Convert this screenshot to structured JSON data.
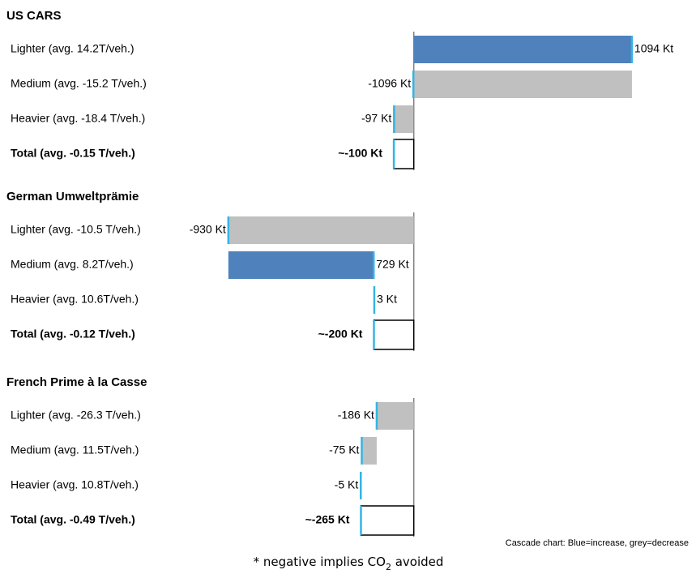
{
  "chart_data": [
    {
      "type": "waterfall",
      "title": "US CARS",
      "categories": [
        "Lighter (avg. 14.2T/veh.)",
        "Medium (avg. -15.2 T/veh.)",
        "Heavier (avg. -18.4 T/veh.)"
      ],
      "values": [
        1094,
        -1096,
        -97
      ],
      "value_labels": [
        "1094 Kt",
        "-1096 Kt",
        "-97 Kt"
      ],
      "total": {
        "label": "Total (avg. -0.15 T/veh.)",
        "value": -100,
        "value_label": "~-100 Kt"
      },
      "xlim": [
        -1100,
        1200
      ],
      "colors": {
        "increase": "#4f81bd",
        "decrease": "#c0c0c0"
      }
    },
    {
      "type": "waterfall",
      "title": "German Umweltprämie",
      "categories": [
        "Lighter (avg. -10.5 T/veh.)",
        "Medium (avg. 8.2T/veh.)",
        "Heavier (avg. 10.6T/veh.)"
      ],
      "values": [
        -930,
        729,
        3
      ],
      "value_labels": [
        "-930 Kt",
        "729 Kt",
        "3 Kt"
      ],
      "total": {
        "label": "Total (avg. -0.12 T/veh.)",
        "value": -200,
        "value_label": "~-200 Kt"
      },
      "xlim": [
        -1100,
        1200
      ],
      "colors": {
        "increase": "#4f81bd",
        "decrease": "#c0c0c0"
      }
    },
    {
      "type": "waterfall",
      "title": "French Prime à la Casse",
      "categories": [
        "Lighter (avg. -26.3 T/veh.)",
        "Medium (avg. 11.5T/veh.)",
        "Heavier (avg. 10.8T/veh.)"
      ],
      "values": [
        -186,
        -75,
        -5
      ],
      "value_labels": [
        "-186 Kt",
        "-75 Kt",
        "-5 Kt"
      ],
      "total": {
        "label": "Total (avg. -0.49 T/veh.)",
        "value": -265,
        "value_label": "~-265 Kt"
      },
      "xlim": [
        -1100,
        1200
      ],
      "colors": {
        "increase": "#4f81bd",
        "decrease": "#c0c0c0"
      }
    }
  ],
  "note": "Cascade chart: Blue=increase, grey=decrease",
  "footnote": [
    "* negative implies CO",
    "2",
    " avoided"
  ]
}
